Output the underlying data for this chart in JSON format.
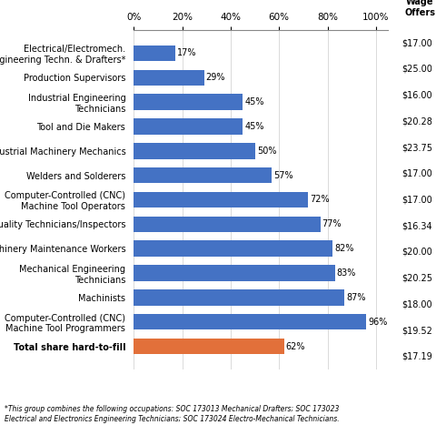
{
  "categories": [
    "Electrical/Electromech.\nEngineering Techn. & Drafters*",
    "Production Supervisors",
    "Industrial Engineering\nTechnicians",
    "Tool and Die Makers",
    "Industrial Machinery Mechanics",
    "Welders and Solderers",
    "Computer-Controlled (CNC)\nMachine Tool Operators",
    "Quality Technicians/Inspectors",
    "Machinery Maintenance Workers",
    "Mechanical Engineering\nTechnicians",
    "Machinists",
    "Computer-Controlled (CNC)\nMachine Tool Programmers",
    "Total share hard-to-fill"
  ],
  "values": [
    17,
    29,
    45,
    45,
    50,
    57,
    72,
    77,
    82,
    83,
    87,
    96,
    62
  ],
  "wages": [
    "$17.00",
    "$25.00",
    "$16.00",
    "$20.28",
    "$23.75",
    "$17.00",
    "$17.00",
    "$16.34",
    "$20.00",
    "$20.25",
    "$18.00",
    "$19.52",
    "$17.19"
  ],
  "bar_colors": [
    "#4472c4",
    "#4472c4",
    "#4472c4",
    "#4472c4",
    "#4472c4",
    "#4472c4",
    "#4472c4",
    "#4472c4",
    "#4472c4",
    "#4472c4",
    "#4472c4",
    "#4472c4",
    "#e2703a"
  ],
  "wage_header": "Median\nWage\nOffers",
  "footnote": "*This group combines the following occupations: SOC 173013 Mechanical Drafters; SOC 173023\nElectrical and Electronics Engineering Technicians; SOC 173024 Electro-Mechanical Technicians.",
  "xticks": [
    0,
    20,
    40,
    60,
    80,
    100
  ],
  "xtick_labels": [
    "0%",
    "20%",
    "40%",
    "60%",
    "80%",
    "100%"
  ]
}
